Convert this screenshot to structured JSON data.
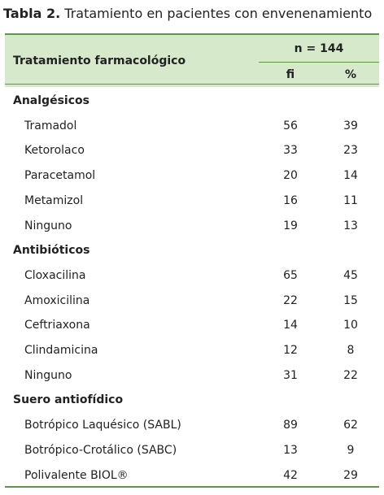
{
  "title": {
    "label": "Tabla 2.",
    "text": "Tratamiento en pacientes con envenenamiento"
  },
  "header": {
    "column": "Tratamiento farmacológico",
    "group": "n = 144",
    "fi": "fi",
    "pct": "%"
  },
  "groups": [
    {
      "name": "Analgésicos",
      "rows": [
        [
          "Tramadol",
          56,
          39
        ],
        [
          "Ketorolaco",
          33,
          23
        ],
        [
          "Paracetamol",
          20,
          14
        ],
        [
          "Metamizol",
          16,
          11
        ],
        [
          "Ninguno",
          19,
          13
        ]
      ]
    },
    {
      "name": "Antibióticos",
      "rows": [
        [
          "Cloxacilina",
          65,
          45
        ],
        [
          "Amoxicilina",
          22,
          15
        ],
        [
          "Ceftriaxona",
          14,
          10
        ],
        [
          "Clindamicina",
          12,
          8
        ],
        [
          "Ninguno",
          31,
          22
        ]
      ]
    },
    {
      "name": "Suero antiofídico",
      "rows": [
        [
          "Botrópico Laquésico (SABL)",
          89,
          62
        ],
        [
          "Botrópico-Crotálico (SABC)",
          13,
          9
        ],
        [
          "Polivalente BIOL®",
          42,
          29
        ]
      ]
    }
  ]
}
